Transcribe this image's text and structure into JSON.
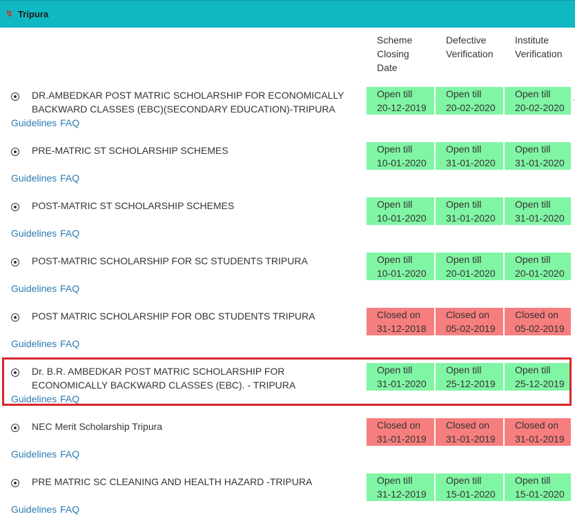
{
  "panel": {
    "title": "Tripura",
    "arrow_icon": "chevron-down-icon"
  },
  "columns": [
    {
      "lines": [
        "Scheme",
        "Closing",
        "Date"
      ]
    },
    {
      "lines": [
        "Defective",
        "Verification"
      ]
    },
    {
      "lines": [
        "Institute",
        "Verification"
      ]
    }
  ],
  "links": {
    "guidelines": "Guidelines",
    "faq": "FAQ"
  },
  "schemes": [
    {
      "name_lines": [
        "DR.AMBEDKAR POST MATRIC SCHOLARSHIP FOR ECONOMICALLY",
        "BACKWARD CLASSES (EBC)(SECONDARY EDUCATION)-TRIPURA"
      ],
      "status": "open",
      "dates": [
        {
          "label": "Open till",
          "date": "20-12-2019"
        },
        {
          "label": "Open till",
          "date": "20-02-2020"
        },
        {
          "label": "Open till",
          "date": "20-02-2020"
        }
      ]
    },
    {
      "name_lines": [
        "PRE-MATRIC ST SCHOLARSHIP SCHEMES"
      ],
      "status": "open",
      "dates": [
        {
          "label": "Open till",
          "date": "10-01-2020"
        },
        {
          "label": "Open till",
          "date": "31-01-2020"
        },
        {
          "label": "Open till",
          "date": "31-01-2020"
        }
      ]
    },
    {
      "name_lines": [
        "POST-MATRIC ST SCHOLARSHIP SCHEMES"
      ],
      "status": "open",
      "dates": [
        {
          "label": "Open till",
          "date": "10-01-2020"
        },
        {
          "label": "Open till",
          "date": "31-01-2020"
        },
        {
          "label": "Open till",
          "date": "31-01-2020"
        }
      ]
    },
    {
      "name_lines": [
        "POST-MATRIC SCHOLARSHIP FOR SC STUDENTS TRIPURA"
      ],
      "status": "open",
      "dates": [
        {
          "label": "Open till",
          "date": "10-01-2020"
        },
        {
          "label": "Open till",
          "date": "20-01-2020"
        },
        {
          "label": "Open till",
          "date": "20-01-2020"
        }
      ]
    },
    {
      "name_lines": [
        "POST MATRIC SCHOLARSHIP FOR OBC STUDENTS TRIPURA"
      ],
      "status": "closed",
      "dates": [
        {
          "label": "Closed on",
          "date": "31-12-2018"
        },
        {
          "label": "Closed on",
          "date": "05-02-2019"
        },
        {
          "label": "Closed on",
          "date": "05-02-2019"
        }
      ]
    },
    {
      "name_lines": [
        "Dr. B.R. AMBEDKAR POST MATRIC SCHOLARSHIP FOR",
        "ECONOMICALLY BACKWARD CLASSES (EBC). - TRIPURA"
      ],
      "status": "open",
      "dates": [
        {
          "label": "Open till",
          "date": "31-01-2020"
        },
        {
          "label": "Open till",
          "date": "25-12-2019"
        },
        {
          "label": "Open till",
          "date": "25-12-2019"
        }
      ]
    },
    {
      "name_lines": [
        "NEC Merit Scholarship Tripura"
      ],
      "status": "closed",
      "dates": [
        {
          "label": "Closed on",
          "date": "31-01-2019"
        },
        {
          "label": "Closed on",
          "date": "31-01-2019"
        },
        {
          "label": "Closed on",
          "date": "31-01-2019"
        }
      ]
    },
    {
      "name_lines": [
        "PRE MATRIC SC CLEANING AND HEALTH HAZARD -TRIPURA"
      ],
      "status": "open",
      "dates": [
        {
          "label": "Open till",
          "date": "31-12-2019"
        },
        {
          "label": "Open till",
          "date": "15-01-2020"
        },
        {
          "label": "Open till",
          "date": "15-01-2020"
        }
      ]
    }
  ],
  "colors": {
    "header": "#10b8c3",
    "open": "#80f5a4",
    "closed": "#f77e7e",
    "highlight": "#d9242b",
    "link": "#2a7ab0"
  }
}
